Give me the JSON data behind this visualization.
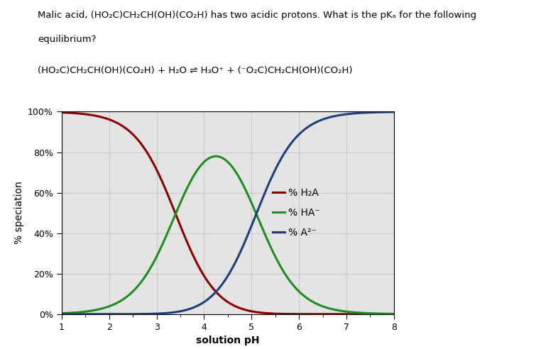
{
  "pka1": 3.4,
  "pka2": 5.1,
  "ph_min": 1.0,
  "ph_max": 8.0,
  "ylim": [
    0,
    100
  ],
  "yticks": [
    0,
    20,
    40,
    60,
    80,
    100
  ],
  "ytick_labels": [
    "0%",
    "20%",
    "40%",
    "60%",
    "80%",
    "100%"
  ],
  "xticks": [
    1,
    2,
    3,
    4,
    5,
    6,
    7,
    8
  ],
  "xlabel": "solution pH",
  "ylabel": "% speciation",
  "color_H2A": "#8B0000",
  "color_HA": "#228B22",
  "color_A2": "#1F3F7A",
  "legend_H2A": "% H₂A",
  "legend_HA": "% HA⁻",
  "legend_A2": "% A²⁻",
  "line_width": 2.2,
  "grid_color": "#c8c8c8",
  "plot_bg": "#e4e4e4",
  "figsize": [
    7.55,
    4.92
  ],
  "dpi": 100
}
